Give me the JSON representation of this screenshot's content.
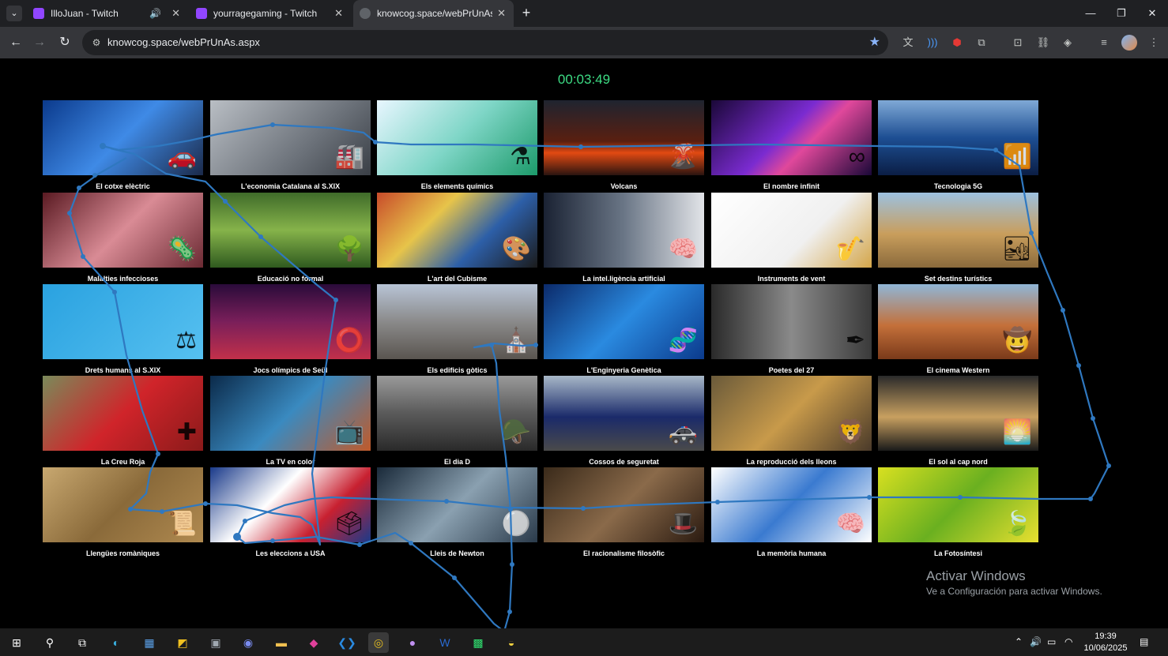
{
  "browser": {
    "tabs": [
      {
        "title": "IlloJuan - Twitch",
        "active": false,
        "audio": true
      },
      {
        "title": "yourragegaming - Twitch",
        "active": false
      },
      {
        "title": "knowcog.space/webPrUnAs.aspx",
        "active": true
      }
    ],
    "url": "knowcog.space/webPrUnAs.aspx"
  },
  "page": {
    "timer": "00:03:49",
    "cards": [
      {
        "label": "El cotxe elèctric",
        "bg": "linear-gradient(135deg,#0b3a8c,#3f8ae6 50%,#1b2a4a)",
        "icon": "🚗"
      },
      {
        "label": "L'economia Catalana al S.XIX",
        "bg": "linear-gradient(135deg,#b9bec4,#6d737b 60%,#3a3f46)",
        "icon": "🏭"
      },
      {
        "label": "Els elements químics",
        "bg": "linear-gradient(135deg,#e8f6ff,#7fd6c7 50%,#1c9a6a)",
        "icon": "⚗"
      },
      {
        "label": "Volcans",
        "bg": "linear-gradient(180deg,#1f2430,#5a1f10 55%,#e24a12 70%,#2a1410)",
        "icon": "🌋"
      },
      {
        "label": "El nombre infinit",
        "bg": "linear-gradient(135deg,#1a0838,#7a2bd0 45%,#e0489b 60%,#1a0838)",
        "icon": "∞"
      },
      {
        "label": "Tecnologia 5G",
        "bg": "linear-gradient(180deg,#7fa9d6,#1d4e93 50%,#0b1e45)",
        "icon": "📶"
      },
      {
        "label": "Malalties infeccioses",
        "bg": "linear-gradient(135deg,#5a1a22,#d98b95 50%,#6b2a33)",
        "icon": "🦠"
      },
      {
        "label": "Educació no formal",
        "bg": "linear-gradient(180deg,#3f6b2a,#86b34a 50%,#2f5a1f)",
        "icon": "🌳"
      },
      {
        "label": "L'art del Cubisme",
        "bg": "linear-gradient(135deg,#c84b2a,#e7c44a 35%,#2d5fa8 65%,#1b1b1b)",
        "icon": "🎨"
      },
      {
        "label": "La intel.ligència artificial",
        "bg": "linear-gradient(90deg,#1a2233,#6a7686 50%,#e2e4e8)",
        "icon": "🧠"
      },
      {
        "label": "Instruments de vent",
        "bg": "linear-gradient(135deg,#ffffff,#f0f0f0 60%,#d4a64a)",
        "icon": "🎷"
      },
      {
        "label": "Set destins turístics",
        "bg": "linear-gradient(180deg,#9cc1e0,#c99e5c 55%,#8a6a3c)",
        "icon": "🏜"
      },
      {
        "label": "Drets humans al S.XIX",
        "bg": "linear-gradient(135deg,#2aa2e0,#56c0f0)",
        "icon": "⚖"
      },
      {
        "label": "Jocs olímpics de Seül",
        "bg": "linear-gradient(180deg,#2a0b3a,#7a1f5a 50%,#c2304a)",
        "icon": "⭕"
      },
      {
        "label": "Els edificis gòtics",
        "bg": "linear-gradient(180deg,#b8c4d6,#8a8a8a 50%,#5a5550)",
        "icon": "⛪"
      },
      {
        "label": "L'Enginyeria Genètica",
        "bg": "linear-gradient(135deg,#0b2a6a,#2a8ae0 50%,#0b3a8c)",
        "icon": "🧬"
      },
      {
        "label": "Poetes del 27",
        "bg": "linear-gradient(90deg,#2a2a2a,#8a8a8a 50%,#3a3a3a)",
        "icon": "✒"
      },
      {
        "label": "El cinema Western",
        "bg": "linear-gradient(180deg,#8fb6d6,#c4703a 55%,#7a3a1a)",
        "icon": "🤠"
      },
      {
        "label": "La Creu Roja",
        "bg": "linear-gradient(135deg,#7a8a5a,#d0242a 50%,#8a1a1a)",
        "icon": "✚"
      },
      {
        "label": "La TV en color",
        "bg": "linear-gradient(135deg,#0b2a4a,#3a8ac0 50%,#c05a2a)",
        "icon": "📺"
      },
      {
        "label": "El dia D",
        "bg": "linear-gradient(180deg,#9a9a9a,#5a5a5a 50%,#2a2a2a)",
        "icon": "🪖"
      },
      {
        "label": "Cossos de seguretat",
        "bg": "linear-gradient(180deg,#a8b8c8,#1a2a6a 55%,#4a4a4a)",
        "icon": "🚓"
      },
      {
        "label": "La reproducció dels lleons",
        "bg": "linear-gradient(135deg,#6a5a3a,#c89a4a 50%,#4a3a2a)",
        "icon": "🦁"
      },
      {
        "label": "El sol al cap nord",
        "bg": "linear-gradient(180deg,#2a2a2a,#c8a060 55%,#1a1a1a)",
        "icon": "🌅"
      },
      {
        "label": "Llengües romàniques",
        "bg": "linear-gradient(135deg,#c8a870,#8a6a3a 50%,#b08a50)",
        "icon": "📜"
      },
      {
        "label": "Les eleccions a USA",
        "bg": "linear-gradient(135deg,#1a3a8a,#ffffff 40%,#c82030 70%,#1a3a8a)",
        "icon": "🗳"
      },
      {
        "label": "Lleis de Newton",
        "bg": "linear-gradient(135deg,#1a2a3a,#8aa0b0 50%,#2a3a4a)",
        "icon": "⚪"
      },
      {
        "label": "El racionalisme filosòfic",
        "bg": "linear-gradient(135deg,#3a2a1a,#8a6a4a 50%,#2a1a10)",
        "icon": "🎩"
      },
      {
        "label": "La memòria humana",
        "bg": "linear-gradient(135deg,#ffffff,#3a7ad0 50%,#ffffff)",
        "icon": "🧠"
      },
      {
        "label": "La Fotosíntesi",
        "bg": "linear-gradient(135deg,#d8e020,#6ab020 50%,#e8e030)",
        "icon": "🍃"
      }
    ],
    "watermark_title": "Activar Windows",
    "watermark_sub": "Ve a Configuración para activar Windows."
  },
  "accent": {
    "timer": "#3ddc84",
    "gaze_path": "#2f78c0"
  },
  "taskbar": {
    "time": "19:39",
    "date": "10/06/2025"
  }
}
